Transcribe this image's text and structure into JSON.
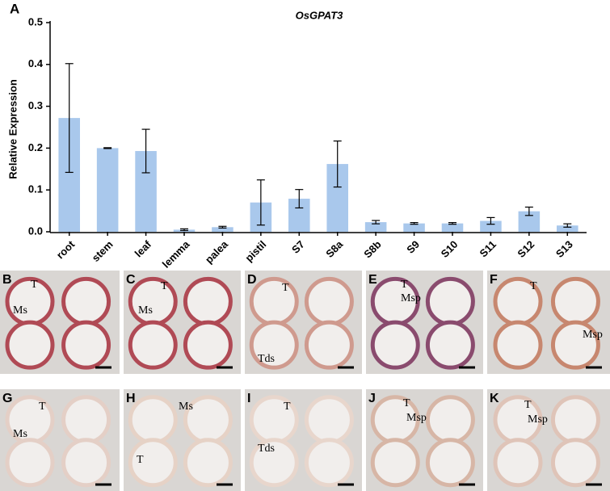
{
  "figure_label": "A",
  "chart_data": {
    "type": "bar",
    "title": "OsGPAT3",
    "y_label": "Relative Expression",
    "categories": [
      "root",
      "stem",
      "leaf",
      "lemma",
      "palea",
      "pistil",
      "S7",
      "S8a",
      "S8b",
      "S9",
      "S10",
      "S11",
      "S12",
      "S13"
    ],
    "values": [
      0.272,
      0.2,
      0.193,
      0.005,
      0.011,
      0.07,
      0.079,
      0.162,
      0.023,
      0.02,
      0.02,
      0.026,
      0.049,
      0.015
    ],
    "errors": [
      0.13,
      0.001,
      0.052,
      0.002,
      0.002,
      0.054,
      0.022,
      0.055,
      0.004,
      0.002,
      0.002,
      0.008,
      0.01,
      0.004
    ],
    "color": "#a9c8ec",
    "ylim": [
      0,
      0.5
    ],
    "yticks": [
      {
        "value": 0,
        "label": "0.0"
      },
      0.1,
      0.2,
      0.3,
      0.4,
      0.5
    ]
  },
  "panels": [
    {
      "label": "B",
      "notes": [
        "T",
        "Ms"
      ]
    },
    {
      "label": "C",
      "notes": [
        "T",
        "Ms"
      ]
    },
    {
      "label": "D",
      "notes": [
        "T",
        "Tds"
      ]
    },
    {
      "label": "E",
      "notes": [
        "T",
        "Msp"
      ]
    },
    {
      "label": "F",
      "notes": [
        "T",
        "Msp"
      ]
    },
    {
      "label": "G",
      "notes": [
        "T",
        "Ms"
      ]
    },
    {
      "label": "H",
      "notes": [
        "Ms",
        "T"
      ]
    },
    {
      "label": "I",
      "notes": [
        "T",
        "Tds"
      ]
    },
    {
      "label": "J",
      "notes": [
        "T",
        "Msp"
      ]
    },
    {
      "label": "K",
      "notes": [
        "T",
        "Msp"
      ]
    }
  ]
}
